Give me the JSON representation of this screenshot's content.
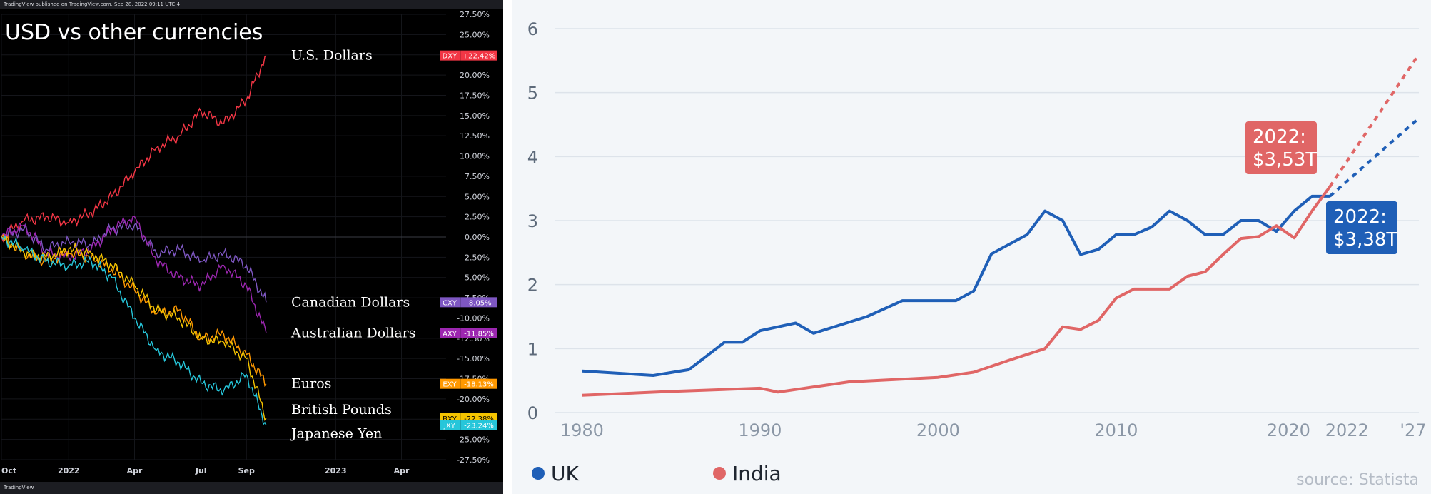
{
  "chart_data": [
    {
      "type": "line",
      "panel": "left",
      "header_text": "TradingView published on TradingView.com, Sep 28, 2022 09:11 UTC-4",
      "footer_text": "TradingView",
      "title": "USD vs other currencies",
      "x_ticks": [
        "Oct",
        "2022",
        "Apr",
        "Jul",
        "Sep",
        "2023",
        "Apr"
      ],
      "y_ticks": [
        "27.50%",
        "25.00%",
        "22.50%",
        "20.00%",
        "17.50%",
        "15.00%",
        "12.50%",
        "10.00%",
        "7.50%",
        "5.00%",
        "2.50%",
        "0.00%",
        "-2.50%",
        "-5.00%",
        "-7.50%",
        "-10.00%",
        "-12.50%",
        "-15.00%",
        "-17.50%",
        "-20.00%",
        "-22.50%",
        "-25.00%",
        "-27.50%"
      ],
      "ylim": [
        -27.5,
        27.5
      ],
      "grid": true,
      "series": [
        {
          "name": "U.S. Dollars",
          "symbol": "DXY",
          "value_label": "+22.42%",
          "color": "#f23645",
          "x": [
            "2021-10-01",
            "2021-11-01",
            "2021-12-01",
            "2022-01-01",
            "2022-02-01",
            "2022-03-01",
            "2022-04-01",
            "2022-05-01",
            "2022-06-01",
            "2022-07-01",
            "2022-08-01",
            "2022-09-01",
            "2022-09-28"
          ],
          "y": [
            0.0,
            2.0,
            2.5,
            1.8,
            3.0,
            5.0,
            8.0,
            11.0,
            12.5,
            15.5,
            14.0,
            17.0,
            22.42
          ]
        },
        {
          "name": "Canadian Dollars",
          "symbol": "CXY",
          "value_label": "-8.05%",
          "color": "#7e57c2",
          "x": [
            "2021-10-01",
            "2021-11-01",
            "2021-12-01",
            "2022-01-01",
            "2022-02-01",
            "2022-03-01",
            "2022-04-01",
            "2022-05-01",
            "2022-06-01",
            "2022-07-01",
            "2022-08-01",
            "2022-09-01",
            "2022-09-28"
          ],
          "y": [
            0.0,
            1.0,
            -1.5,
            -0.5,
            -1.0,
            1.0,
            1.5,
            -2.0,
            -1.5,
            -3.0,
            -2.0,
            -3.5,
            -8.05
          ]
        },
        {
          "name": "Australian Dollars",
          "symbol": "AXY",
          "value_label": "-11.85%",
          "color": "#9c27b0",
          "x": [
            "2021-10-01",
            "2021-11-01",
            "2021-12-01",
            "2022-01-01",
            "2022-02-01",
            "2022-03-01",
            "2022-04-01",
            "2022-05-01",
            "2022-06-01",
            "2022-07-01",
            "2022-08-01",
            "2022-09-01",
            "2022-09-28"
          ],
          "y": [
            0.0,
            1.5,
            -2.0,
            -2.5,
            -1.5,
            1.0,
            2.5,
            -3.0,
            -5.0,
            -6.0,
            -3.5,
            -6.0,
            -11.85
          ]
        },
        {
          "name": "Euros",
          "symbol": "EXY",
          "value_label": "-18.13%",
          "color": "#ff9800",
          "x": [
            "2021-10-01",
            "2021-11-01",
            "2021-12-01",
            "2022-01-01",
            "2022-02-01",
            "2022-03-01",
            "2022-04-01",
            "2022-05-01",
            "2022-06-01",
            "2022-07-01",
            "2022-08-01",
            "2022-09-01",
            "2022-09-28"
          ],
          "y": [
            0.0,
            -2.0,
            -3.0,
            -2.0,
            -2.5,
            -4.0,
            -6.5,
            -9.5,
            -9.0,
            -12.5,
            -12.0,
            -14.5,
            -18.13
          ]
        },
        {
          "name": "British Pounds",
          "symbol": "BXY",
          "value_label": "-22.38%",
          "color": "#f5c400",
          "x": [
            "2021-10-01",
            "2021-11-01",
            "2021-12-01",
            "2022-01-01",
            "2022-02-01",
            "2022-03-01",
            "2022-04-01",
            "2022-05-01",
            "2022-06-01",
            "2022-07-01",
            "2022-08-01",
            "2022-09-01",
            "2022-09-28"
          ],
          "y": [
            0.0,
            -2.0,
            -2.5,
            -1.5,
            -2.0,
            -3.5,
            -6.0,
            -9.0,
            -10.0,
            -12.5,
            -13.0,
            -15.0,
            -22.38
          ]
        },
        {
          "name": "Japanese Yen",
          "symbol": "JXY",
          "value_label": "-23.24%",
          "color": "#26c6da",
          "x": [
            "2021-10-01",
            "2021-11-01",
            "2021-12-01",
            "2022-01-01",
            "2022-02-01",
            "2022-03-01",
            "2022-04-01",
            "2022-05-01",
            "2022-06-01",
            "2022-07-01",
            "2022-08-01",
            "2022-09-01",
            "2022-09-28"
          ],
          "y": [
            0.0,
            -1.5,
            -3.0,
            -3.5,
            -3.0,
            -5.0,
            -10.0,
            -14.0,
            -15.5,
            -18.0,
            -19.0,
            -17.0,
            -23.24
          ]
        }
      ]
    },
    {
      "type": "line",
      "panel": "right",
      "ylim": [
        0,
        6
      ],
      "y_ticks": [
        "0",
        "1",
        "2",
        "3",
        "4",
        "5",
        "6"
      ],
      "x_ticks": [
        "1980",
        "1990",
        "2000",
        "2010",
        "2020",
        "2022",
        "'27"
      ],
      "grid": true,
      "legend_placement": "bottom-left",
      "source": "source: Statista",
      "series": [
        {
          "name": "UK",
          "color": "#1f5fb7",
          "x": [
            1980,
            1984,
            1986,
            1988,
            1989,
            1990,
            1992,
            1993,
            1996,
            1998,
            2001,
            2002,
            2003,
            2005,
            2006,
            2007,
            2008,
            2009,
            2010,
            2011,
            2012,
            2013,
            2014,
            2015,
            2016,
            2017,
            2018,
            2019,
            2020,
            2021,
            2022
          ],
          "y": [
            0.65,
            0.58,
            0.67,
            1.1,
            1.1,
            1.28,
            1.4,
            1.24,
            1.5,
            1.75,
            1.75,
            1.9,
            2.48,
            2.78,
            3.15,
            3.0,
            2.47,
            2.55,
            2.78,
            2.78,
            2.9,
            3.15,
            3.0,
            2.78,
            2.78,
            3.0,
            3.0,
            2.83,
            3.15,
            3.38,
            3.38
          ],
          "forecast_x": [
            2022,
            2027
          ],
          "forecast_y": [
            3.38,
            4.6
          ]
        },
        {
          "name": "India",
          "color": "#e06666",
          "x": [
            1980,
            1985,
            1990,
            1991,
            1995,
            2000,
            2002,
            2004,
            2006,
            2007,
            2008,
            2009,
            2010,
            2011,
            2012,
            2013,
            2014,
            2015,
            2016,
            2017,
            2018,
            2019,
            2020,
            2021,
            2022
          ],
          "y": [
            0.27,
            0.33,
            0.38,
            0.32,
            0.48,
            0.55,
            0.63,
            0.82,
            1.0,
            1.34,
            1.3,
            1.44,
            1.79,
            1.93,
            1.93,
            1.93,
            2.13,
            2.2,
            2.47,
            2.72,
            2.75,
            2.92,
            2.73,
            3.15,
            3.53
          ],
          "forecast_x": [
            2022,
            2027
          ],
          "forecast_y": [
            3.53,
            5.6
          ]
        }
      ],
      "annotations": [
        {
          "series": "India",
          "line1": "2022:",
          "line2": "$3,53T",
          "color": "#e06666"
        },
        {
          "series": "UK",
          "line1": "2022:",
          "line2": "$3,38T",
          "color": "#1f5fb7"
        }
      ]
    }
  ]
}
